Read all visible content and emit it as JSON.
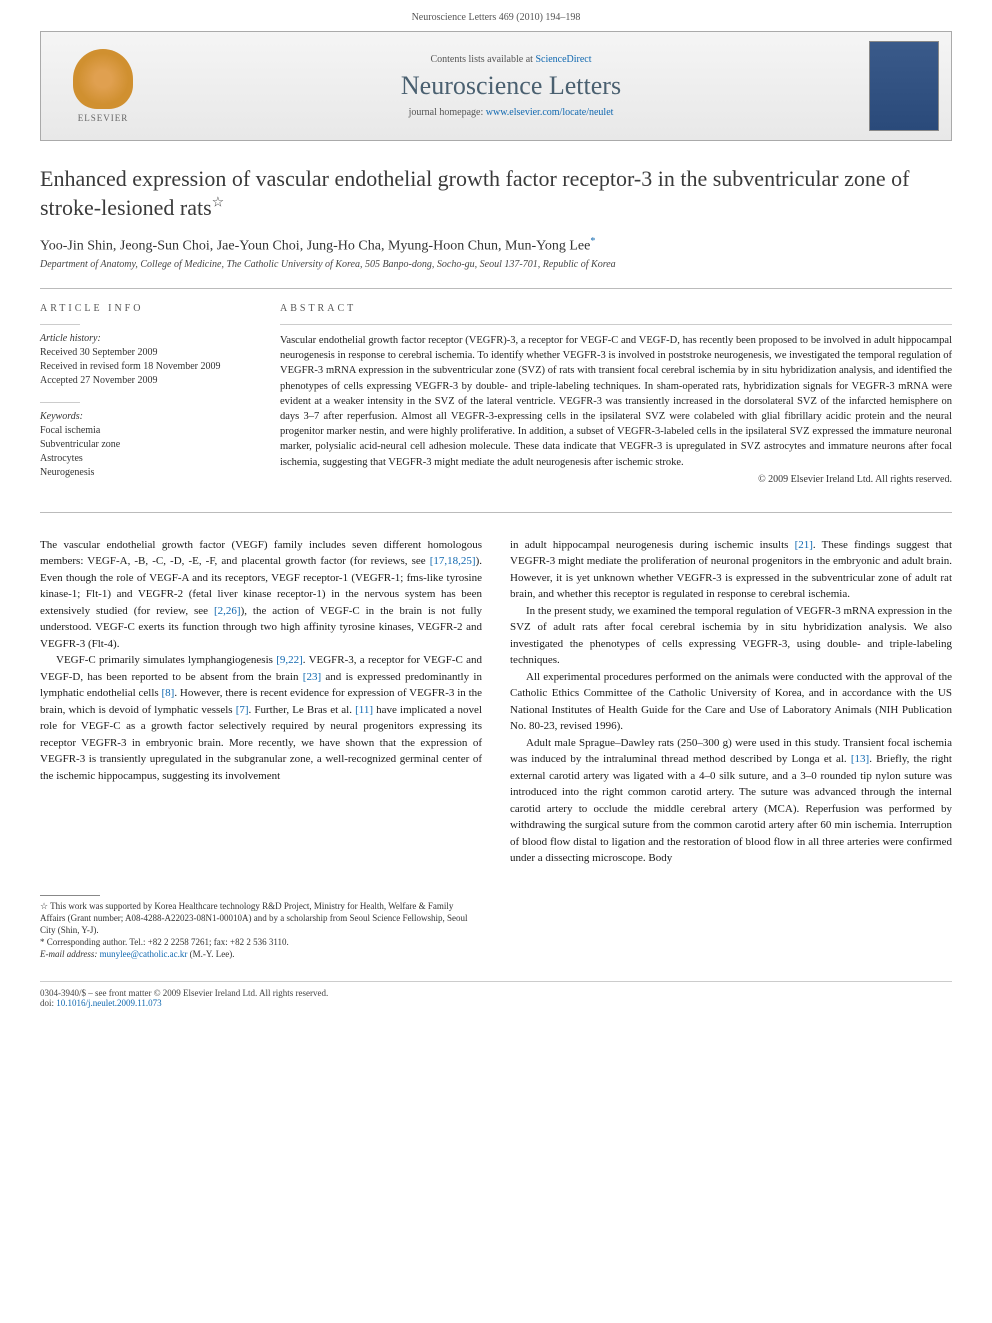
{
  "header": {
    "citation": "Neuroscience Letters 469 (2010) 194–198"
  },
  "banner": {
    "contents_prefix": "Contents lists available at ",
    "contents_link": "ScienceDirect",
    "journal_name": "Neuroscience Letters",
    "homepage_prefix": "journal homepage: ",
    "homepage_url": "www.elsevier.com/locate/neulet",
    "publisher_label": "ELSEVIER"
  },
  "article": {
    "title": "Enhanced expression of vascular endothelial growth factor receptor-3 in the subventricular zone of stroke-lesioned rats",
    "title_note_symbol": "☆",
    "authors": "Yoo-Jin Shin, Jeong-Sun Choi, Jae-Youn Choi, Jung-Ho Cha, Myung-Hoon Chun, Mun-Yong Lee",
    "corresponding_symbol": "*",
    "affiliation": "Department of Anatomy, College of Medicine, The Catholic University of Korea, 505 Banpo-dong, Socho-gu, Seoul 137-701, Republic of Korea"
  },
  "article_info": {
    "heading": "ARTICLE INFO",
    "history_label": "Article history:",
    "received": "Received 30 September 2009",
    "revised": "Received in revised form 18 November 2009",
    "accepted": "Accepted 27 November 2009",
    "keywords_label": "Keywords:",
    "keywords": "Focal ischemia\nSubventricular zone\nAstrocytes\nNeurogenesis"
  },
  "abstract": {
    "heading": "ABSTRACT",
    "text": "Vascular endothelial growth factor receptor (VEGFR)-3, a receptor for VEGF-C and VEGF-D, has recently been proposed to be involved in adult hippocampal neurogenesis in response to cerebral ischemia. To identify whether VEGFR-3 is involved in poststroke neurogenesis, we investigated the temporal regulation of VEGFR-3 mRNA expression in the subventricular zone (SVZ) of rats with transient focal cerebral ischemia by in situ hybridization analysis, and identified the phenotypes of cells expressing VEGFR-3 by double- and triple-labeling techniques. In sham-operated rats, hybridization signals for VEGFR-3 mRNA were evident at a weaker intensity in the SVZ of the lateral ventricle. VEGFR-3 was transiently increased in the dorsolateral SVZ of the infarcted hemisphere on days 3–7 after reperfusion. Almost all VEGFR-3-expressing cells in the ipsilateral SVZ were colabeled with glial fibrillary acidic protein and the neural progenitor marker nestin, and were highly proliferative. In addition, a subset of VEGFR-3-labeled cells in the ipsilateral SVZ expressed the immature neuronal marker, polysialic acid-neural cell adhesion molecule. These data indicate that VEGFR-3 is upregulated in SVZ astrocytes and immature neurons after focal ischemia, suggesting that VEGFR-3 might mediate the adult neurogenesis after ischemic stroke.",
    "copyright": "© 2009 Elsevier Ireland Ltd. All rights reserved."
  },
  "body": {
    "col1": {
      "p1": "The vascular endothelial growth factor (VEGF) family includes seven different homologous members: VEGF-A, -B, -C, -D, -E, -F, and placental growth factor (for reviews, see [17,18,25]). Even though the role of VEGF-A and its receptors, VEGF receptor-1 (VEGFR-1; fms-like tyrosine kinase-1; Flt-1) and VEGFR-2 (fetal liver kinase receptor-1) in the nervous system has been extensively studied (for review, see [2,26]), the action of VEGF-C in the brain is not fully understood. VEGF-C exerts its function through two high affinity tyrosine kinases, VEGFR-2 and VEGFR-3 (Flt-4).",
      "p2": "VEGF-C primarily simulates lymphangiogenesis [9,22]. VEGFR-3, a receptor for VEGF-C and VEGF-D, has been reported to be absent from the brain [23] and is expressed predominantly in lymphatic endothelial cells [8]. However, there is recent evidence for expression of VEGFR-3 in the brain, which is devoid of lymphatic vessels [7]. Further, Le Bras et al. [11] have implicated a novel role for VEGF-C as a growth factor selectively required by neural progenitors expressing its receptor VEGFR-3 in embryonic brain. More recently, we have shown that the expression of VEGFR-3 is transiently upregulated in the subgranular zone, a well-recognized germinal center of the ischemic hippocampus, suggesting its involvement"
    },
    "col2": {
      "p1": "in adult hippocampal neurogenesis during ischemic insults [21]. These findings suggest that VEGFR-3 might mediate the proliferation of neuronal progenitors in the embryonic and adult brain. However, it is yet unknown whether VEGFR-3 is expressed in the subventricular zone of adult rat brain, and whether this receptor is regulated in response to cerebral ischemia.",
      "p2": "In the present study, we examined the temporal regulation of VEGFR-3 mRNA expression in the SVZ of adult rats after focal cerebral ischemia by in situ hybridization analysis. We also investigated the phenotypes of cells expressing VEGFR-3, using double- and triple-labeling techniques.",
      "p3": "All experimental procedures performed on the animals were conducted with the approval of the Catholic Ethics Committee of the Catholic University of Korea, and in accordance with the US National Institutes of Health Guide for the Care and Use of Laboratory Animals (NIH Publication No. 80-23, revised 1996).",
      "p4": "Adult male Sprague–Dawley rats (250–300 g) were used in this study. Transient focal ischemia was induced by the intraluminal thread method described by Longa et al. [13]. Briefly, the right external carotid artery was ligated with a 4–0 silk suture, and a 3–0 rounded tip nylon suture was introduced into the right common carotid artery. The suture was advanced through the internal carotid artery to occlude the middle cerebral artery (MCA). Reperfusion was performed by withdrawing the surgical suture from the common carotid artery after 60 min ischemia. Interruption of blood flow distal to ligation and the restoration of blood flow in all three arteries were confirmed under a dissecting microscope. Body"
    }
  },
  "footnotes": {
    "funding": "☆ This work was supported by Korea Healthcare technology R&D Project, Ministry for Health, Welfare & Family Affairs (Grant number; A08-4288-A22023-08N1-00010A) and by a scholarship from Seoul Science Fellowship, Seoul City (Shin, Y-J).",
    "corresponding": "* Corresponding author. Tel.: +82 2 2258 7261; fax: +82 2 536 3110.",
    "email_label": "E-mail address: ",
    "email": "munylee@catholic.ac.kr",
    "email_suffix": " (M.-Y. Lee)."
  },
  "footer": {
    "left": "0304-3940/$ – see front matter © 2009 Elsevier Ireland Ltd. All rights reserved.",
    "doi_label": "doi:",
    "doi": "10.1016/j.neulet.2009.11.073"
  },
  "refs": {
    "r17_18_25": "[17,18,25]",
    "r2_26": "[2,26]",
    "r9_22": "[9,22]",
    "r23": "[23]",
    "r8": "[8]",
    "r7": "[7]",
    "r11": "[11]",
    "r21": "[21]",
    "r13": "[13]"
  }
}
